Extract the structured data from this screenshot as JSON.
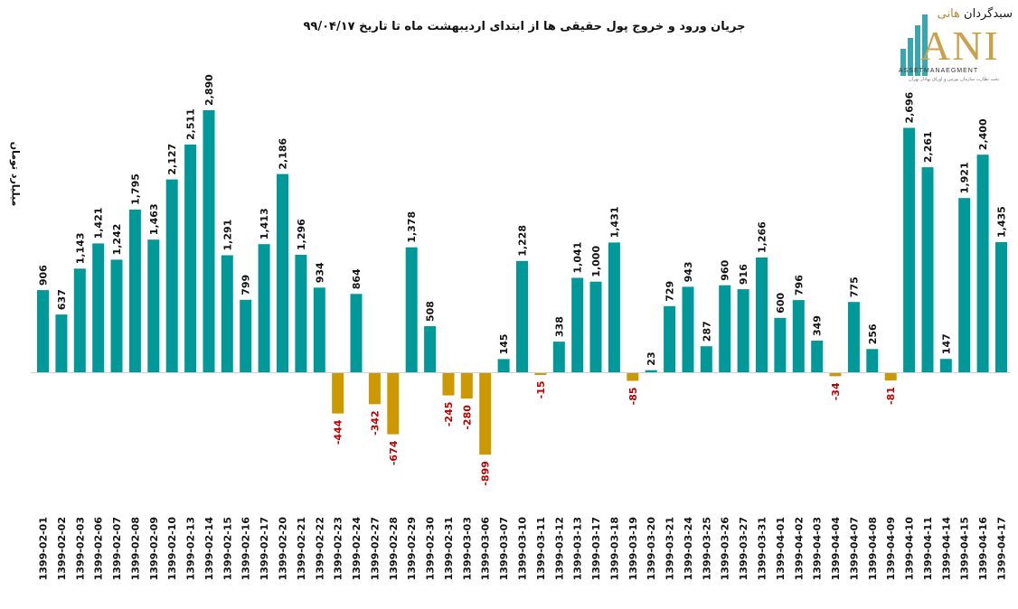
{
  "chart_data": {
    "type": "bar",
    "title": "جریان ورود و خروج پول حقیقی ها از ابتدای اردیبهشت ماه تا تاریخ ۹۹/۰۴/۱۷",
    "xlabel": "",
    "ylabel": "میلیارد تومان",
    "ylim": [
      -1000,
      3000
    ],
    "grid": false,
    "legend": "none",
    "colors": {
      "positive": "#009999",
      "negative": "#cc9900",
      "positive_label": "#111111",
      "negative_label": "#c00000",
      "axis": "#d0d0d0"
    },
    "categories": [
      "1399-02-01",
      "1399-02-02",
      "1399-02-03",
      "1399-02-06",
      "1399-02-07",
      "1399-02-08",
      "1399-02-09",
      "1399-02-10",
      "1399-02-13",
      "1399-02-14",
      "1399-02-15",
      "1399-02-16",
      "1399-02-17",
      "1399-02-20",
      "1399-02-21",
      "1399-02-22",
      "1399-02-23",
      "1399-02-24",
      "1399-02-27",
      "1399-02-28",
      "1399-02-29",
      "1399-02-30",
      "1399-02-31",
      "1399-03-03",
      "1399-03-06",
      "1399-03-07",
      "1399-03-10",
      "1399-03-11",
      "1399-03-12",
      "1399-03-13",
      "1399-03-17",
      "1399-03-18",
      "1399-03-19",
      "1399-03-20",
      "1399-03-21",
      "1399-03-24",
      "1399-03-25",
      "1399-03-26",
      "1399-03-27",
      "1399-03-31",
      "1399-04-01",
      "1399-04-02",
      "1399-04-03",
      "1399-04-04",
      "1399-04-07",
      "1399-04-08",
      "1399-04-09",
      "1399-04-10",
      "1399-04-11",
      "1399-04-14",
      "1399-04-15",
      "1399-04-16",
      "1399-04-17"
    ],
    "values": [
      906,
      637,
      1143,
      1421,
      1242,
      1795,
      1463,
      2127,
      2511,
      2890,
      1291,
      799,
      1413,
      2186,
      1296,
      934,
      -444,
      864,
      -342,
      -674,
      1378,
      508,
      -245,
      -280,
      -899,
      145,
      1228,
      -15,
      338,
      1041,
      1000,
      1431,
      -85,
      23,
      729,
      943,
      287,
      960,
      916,
      1266,
      600,
      796,
      349,
      -34,
      775,
      256,
      -81,
      2696,
      2261,
      147,
      1921,
      2400,
      1435
    ],
    "labels": [
      "906",
      "637",
      "1,143",
      "1,421",
      "1,242",
      "1,795",
      "1,463",
      "2,127",
      "2,511",
      "2,890",
      "1,291",
      "799",
      "1,413",
      "2,186",
      "1,296",
      "934",
      "-444",
      "864",
      "-342",
      "-674",
      "1,378",
      "508",
      "-245",
      "-280",
      "-899",
      "145",
      "1,228",
      "-15",
      "338",
      "1,041",
      "1,000",
      "1,431",
      "-85",
      "23",
      "729",
      "943",
      "287",
      "960",
      "916",
      "1,266",
      "600",
      "796",
      "349",
      "-34",
      "775",
      "256",
      "-81",
      "2,696",
      "2,261",
      "147",
      "1,921",
      "2,400",
      "1,435"
    ]
  },
  "logo": {
    "brand_fa_main": "سبدگردان",
    "brand_fa_accent": "هانی",
    "brand_ani": "ANI",
    "brand_sub": "ASSETMANAEGMENT",
    "brand_tag": "تحت نظارت سازمان بورس و اوراق بهادار تهران",
    "colors": {
      "bars": "#3aa6b0",
      "gold": "#c9a24a"
    }
  }
}
